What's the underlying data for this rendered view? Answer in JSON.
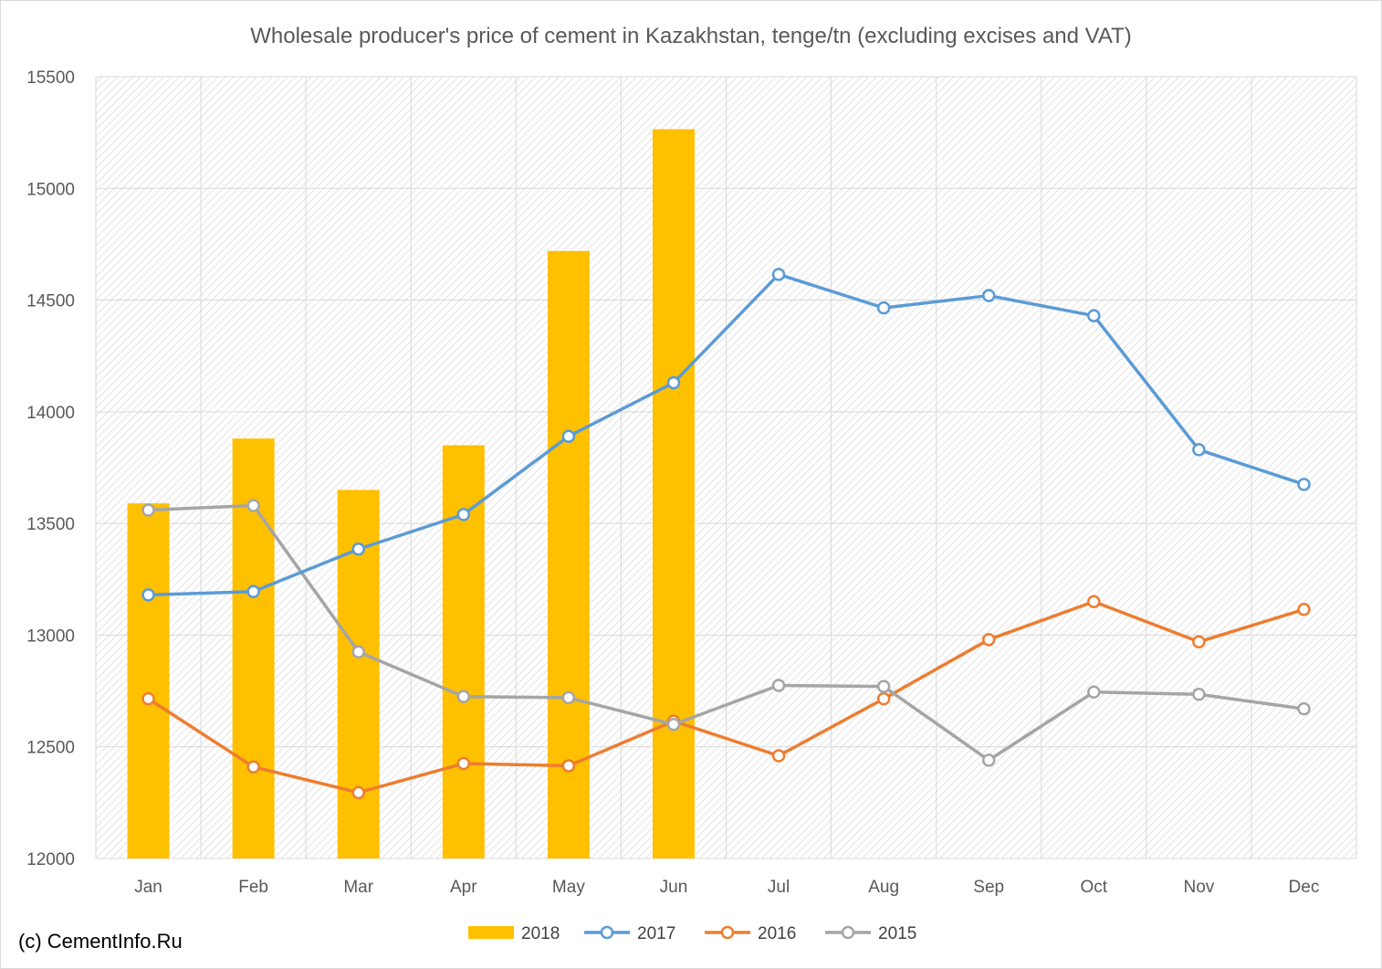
{
  "chart_data": {
    "type": "bar+line",
    "title": "Wholesale producer's price of cement in Kazakhstan, tenge/tn (excluding excises and VAT)",
    "credit": "(c) CementInfo.Ru",
    "categories": [
      "Jan",
      "Feb",
      "Mar",
      "Apr",
      "May",
      "Jun",
      "Jul",
      "Aug",
      "Sep",
      "Oct",
      "Nov",
      "Dec"
    ],
    "ylim": [
      12000,
      15500
    ],
    "yticks": [
      12000,
      12500,
      13000,
      13500,
      14000,
      14500,
      15000,
      15500
    ],
    "grid": true,
    "legend_position": "bottom",
    "series": [
      {
        "name": "2018",
        "kind": "bar",
        "color": "#FFC000",
        "values": [
          13590,
          13880,
          13650,
          13850,
          14720,
          15265,
          null,
          null,
          null,
          null,
          null,
          null
        ]
      },
      {
        "name": "2017",
        "kind": "line",
        "color": "#5B9BD5",
        "values": [
          13180,
          13195,
          13385,
          13540,
          13890,
          14130,
          14615,
          14465,
          14520,
          14430,
          13830,
          13675
        ]
      },
      {
        "name": "2016",
        "kind": "line",
        "color": "#ED7D31",
        "values": [
          12715,
          12410,
          12295,
          12425,
          12415,
          12615,
          12460,
          12715,
          12980,
          13150,
          12970,
          13115
        ]
      },
      {
        "name": "2015",
        "kind": "line",
        "color": "#A5A5A5",
        "values": [
          13560,
          13580,
          12925,
          12725,
          12720,
          12600,
          12775,
          12770,
          12440,
          12745,
          12735,
          12670
        ]
      }
    ]
  }
}
